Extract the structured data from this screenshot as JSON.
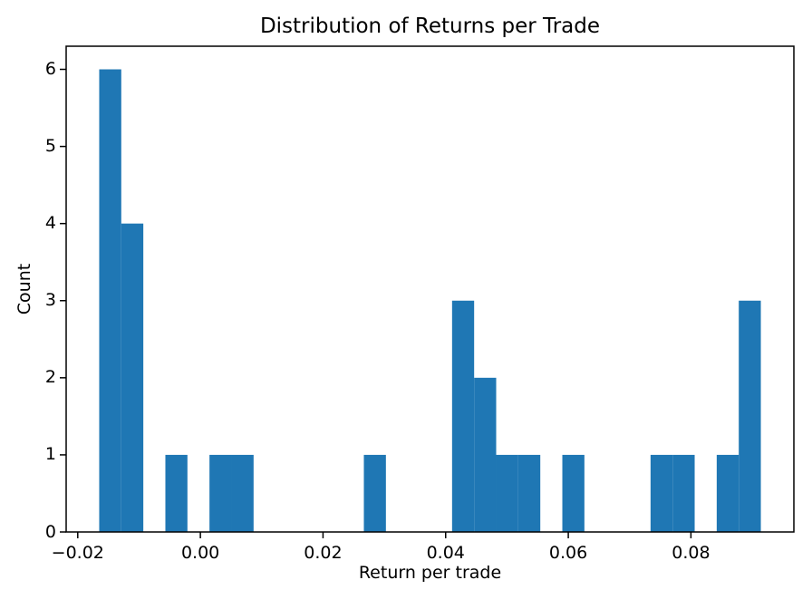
{
  "figure": {
    "background_color": "#ffffff",
    "spine_color": "#000000",
    "text_color": "#000000"
  },
  "chart_data": {
    "type": "bar",
    "subtype": "histogram",
    "title": "Distribution of Returns per Trade",
    "xlabel": "Return per trade",
    "ylabel": "Count",
    "bar_color": "#1f77b4",
    "bin_min": -0.0165,
    "bin_max": 0.0914,
    "bin_count": 30,
    "counts": [
      6,
      4,
      0,
      1,
      0,
      1,
      1,
      0,
      0,
      0,
      0,
      0,
      1,
      0,
      0,
      0,
      3,
      2,
      1,
      1,
      0,
      1,
      0,
      0,
      0,
      1,
      1,
      0,
      1,
      3
    ],
    "xlim": [
      -0.02189,
      0.09679
    ],
    "ylim": [
      0,
      6.3
    ],
    "x_ticks": [
      -0.02,
      0.0,
      0.02,
      0.04,
      0.06,
      0.08
    ],
    "x_tick_labels": [
      "−0.02",
      "0.00",
      "0.02",
      "0.04",
      "0.06",
      "0.08"
    ],
    "y_ticks": [
      0,
      1,
      2,
      3,
      4,
      5,
      6
    ],
    "y_tick_labels": [
      "0",
      "1",
      "2",
      "3",
      "4",
      "5",
      "6"
    ],
    "grid": false,
    "legend": null
  }
}
